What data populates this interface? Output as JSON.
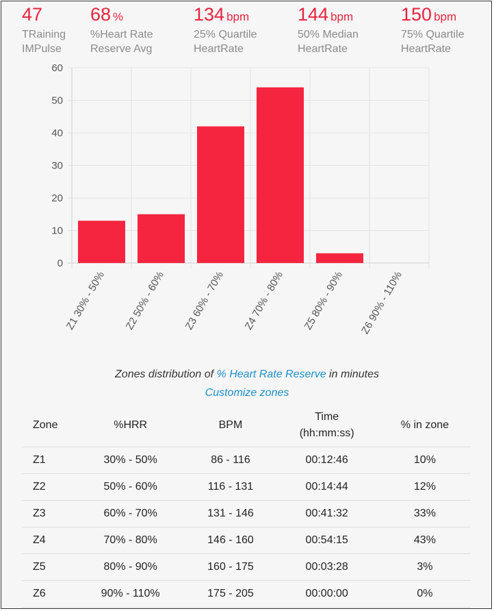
{
  "stats": [
    {
      "value": "47",
      "unit": "",
      "label1": "TRaining",
      "label2": "IMPulse"
    },
    {
      "value": "68",
      "unit": "%",
      "label1": "%Heart Rate",
      "label2": "Reserve Avg"
    },
    {
      "value": "134",
      "unit": "bpm",
      "label1": "25% Quartile",
      "label2": "HeartRate"
    },
    {
      "value": "144",
      "unit": "bpm",
      "label1": "50% Median",
      "label2": "HeartRate"
    },
    {
      "value": "150",
      "unit": "bpm",
      "label1": "75% Quartile",
      "label2": "HeartRate"
    }
  ],
  "chart_data": {
    "type": "bar",
    "categories": [
      "Z1 30% - 50%",
      "Z2 50% - 60%",
      "Z3 60% - 70%",
      "Z4 70% - 80%",
      "Z5 80% - 90%",
      "Z6 90% - 110%"
    ],
    "values": [
      13,
      15,
      42,
      54,
      3,
      0
    ],
    "ylim": [
      0,
      60
    ],
    "yticks": [
      "0",
      "10",
      "20",
      "30",
      "40",
      "50",
      "60"
    ],
    "grid": true,
    "bar_color": "#f52540"
  },
  "caption": {
    "prefix": "Zones distribution of ",
    "link": "% Heart Rate Reserve",
    "suffix": " in minutes",
    "customize": "Customize zones"
  },
  "table": {
    "headers": {
      "zone": "Zone",
      "hrr": "%HRR",
      "bpm": "BPM",
      "time": "Time",
      "time_sub": "(hh:mm:ss)",
      "pct": "% in zone"
    },
    "rows": [
      {
        "zone": "Z1",
        "hrr": "30% - 50%",
        "bpm": "86 - 116",
        "time": "00:12:46",
        "pct": "10%"
      },
      {
        "zone": "Z2",
        "hrr": "50% - 60%",
        "bpm": "116 - 131",
        "time": "00:14:44",
        "pct": "12%"
      },
      {
        "zone": "Z3",
        "hrr": "60% - 70%",
        "bpm": "131 - 146",
        "time": "00:41:32",
        "pct": "33%"
      },
      {
        "zone": "Z4",
        "hrr": "70% - 80%",
        "bpm": "146 - 160",
        "time": "00:54:15",
        "pct": "43%"
      },
      {
        "zone": "Z5",
        "hrr": "80% - 90%",
        "bpm": "160 - 175",
        "time": "00:03:28",
        "pct": "3%"
      },
      {
        "zone": "Z6",
        "hrr": "90% - 110%",
        "bpm": "175 - 205",
        "time": "00:00:00",
        "pct": "0%"
      }
    ]
  }
}
